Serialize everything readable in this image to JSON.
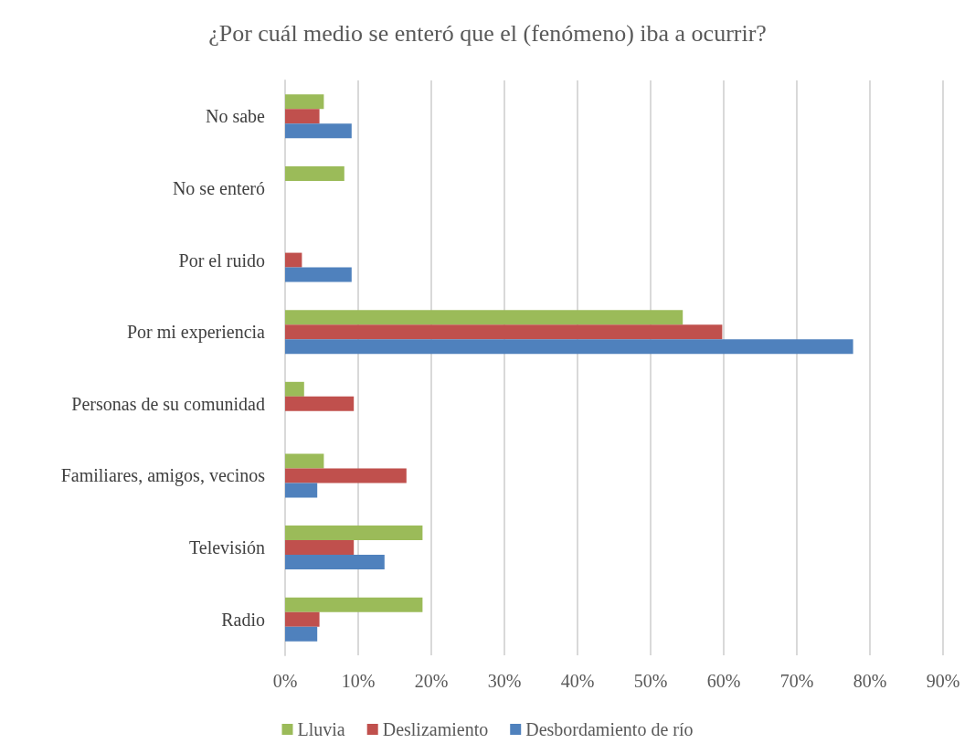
{
  "chart_data": {
    "type": "bar",
    "orientation": "horizontal",
    "title": "¿Por cuál medio se enteró que el (fenómeno) iba a ocurrir?",
    "categories": [
      "No sabe",
      "No se enteró",
      "Por el ruido",
      "Por mi experiencia",
      "Personas de su comunidad",
      "Familiares, amigos, vecinos",
      "Televisión",
      "Radio"
    ],
    "series": [
      {
        "name": "Lluvia",
        "color": "#9bbb59",
        "values": [
          5.3,
          8.1,
          null,
          54.4,
          2.6,
          5.3,
          18.8,
          18.8
        ]
      },
      {
        "name": "Deslizamiento",
        "color": "#c0504d",
        "values": [
          4.7,
          null,
          2.3,
          59.8,
          9.4,
          16.6,
          9.4,
          4.7
        ]
      },
      {
        "name": "Desbordamiento de río",
        "color": "#4f81bd",
        "values": [
          9.1,
          null,
          9.1,
          77.7,
          null,
          4.4,
          13.6,
          4.4
        ]
      }
    ],
    "xlim": [
      0,
      90
    ],
    "xticks": [
      {
        "value": 0,
        "label": "0%"
      },
      {
        "value": 10,
        "label": "10%"
      },
      {
        "value": 20,
        "label": "20%"
      },
      {
        "value": 30,
        "label": "30%"
      },
      {
        "value": 40,
        "label": "40%"
      },
      {
        "value": 50,
        "label": "50%"
      },
      {
        "value": 60,
        "label": "60%"
      },
      {
        "value": 70,
        "label": "70%"
      },
      {
        "value": 80,
        "label": "80%"
      },
      {
        "value": 90,
        "label": "90%"
      }
    ],
    "grid": "x",
    "legend": "bottom"
  }
}
